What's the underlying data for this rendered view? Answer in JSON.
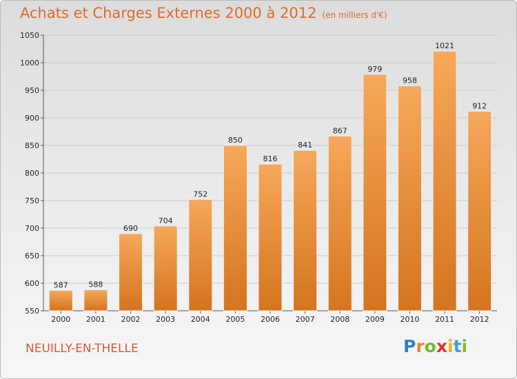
{
  "title": "Achats et Charges Externes 2000 à 2012",
  "unit": "(en milliers d'€)",
  "city": "NEUILLY-EN-THELLE",
  "logo": {
    "letters": [
      "P",
      "r",
      "o",
      "x",
      "i",
      "t",
      "i"
    ],
    "colors": [
      "#2e7fc8",
      "#e8892a",
      "#6fba2c",
      "#d9392b",
      "#f0b323",
      "#3ea0dd",
      "#88b83a"
    ]
  },
  "colors": {
    "bar_top": "#f6a85a",
    "bar_bottom": "#d4741e",
    "title": "#de6b26"
  },
  "chart_data": {
    "type": "bar",
    "categories": [
      "2000",
      "2001",
      "2002",
      "2003",
      "2004",
      "2005",
      "2006",
      "2007",
      "2008",
      "2009",
      "2010",
      "2011",
      "2012"
    ],
    "values": [
      587,
      588,
      690,
      704,
      752,
      850,
      816,
      841,
      867,
      979,
      958,
      1021,
      912
    ],
    "ylim": [
      550,
      1050
    ],
    "yticks": [
      550,
      600,
      650,
      700,
      750,
      800,
      850,
      900,
      950,
      1000,
      1050
    ],
    "grid": true
  }
}
